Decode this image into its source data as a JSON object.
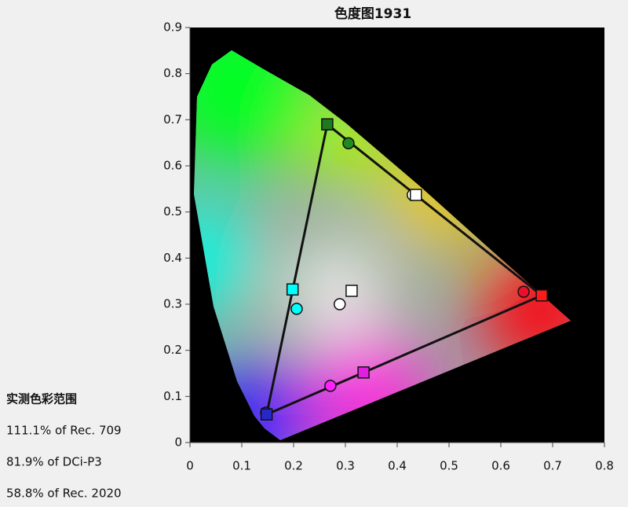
{
  "chart_data": {
    "type": "scatter",
    "title": "色度图1931",
    "annotations": [
      "实测色彩范围",
      "111.1% of Rec. 709",
      "81.9% of DCi-P3",
      "58.8% of Rec. 2020"
    ],
    "xlim": [
      0,
      0.8
    ],
    "ylim": [
      0,
      0.9
    ],
    "xticks": [
      0,
      0.1,
      0.2,
      0.3,
      0.4,
      0.5,
      0.6,
      0.7,
      0.8
    ],
    "yticks": [
      0,
      0.1,
      0.2,
      0.3,
      0.4,
      0.5,
      0.6,
      0.7,
      0.8,
      0.9
    ],
    "series": [
      {
        "marker": "square",
        "x": [
          0.265,
          0.679,
          0.148,
          0.198,
          0.312,
          0.436,
          0.335
        ],
        "values": [
          0.69,
          0.319,
          0.061,
          0.332,
          0.329,
          0.537,
          0.152
        ],
        "colors": [
          "#1f7a1f",
          "#ff1a1a",
          "#2828c8",
          "#00ffff",
          "#ffffff",
          "#ffffff",
          "#e020e0"
        ]
      },
      {
        "marker": "circle",
        "x": [
          0.306,
          0.644,
          0.147,
          0.206,
          0.289,
          0.43,
          0.271
        ],
        "values": [
          0.649,
          0.327,
          0.065,
          0.29,
          0.3,
          0.537,
          0.123
        ],
        "colors": [
          "#1f8a1f",
          "#e8102a",
          "#2a2aff",
          "#00ffff",
          "#ffffff",
          "#ffffff",
          "#ff20ff"
        ]
      }
    ]
  }
}
